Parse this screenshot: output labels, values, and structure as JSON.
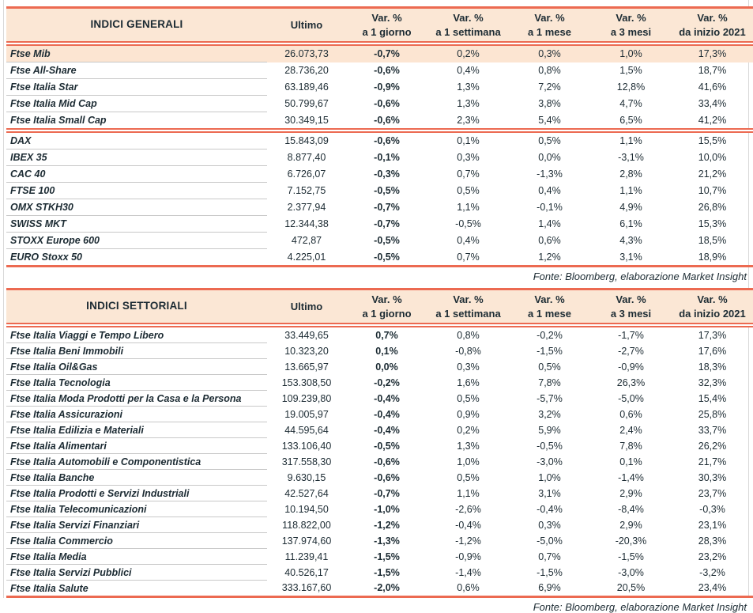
{
  "colors": {
    "accent_border": "#ec6a51",
    "header_bg": "#fbe7d5",
    "highlight_row_bg": "#fce5d2",
    "row_separator": "#c8c8c8",
    "text": "#1c2b33",
    "page_edge": "#d8d8d8"
  },
  "tables": [
    {
      "title": "INDICI GENERALI",
      "ultimo_label": "Ultimo",
      "columns": [
        {
          "top": "Var. %",
          "bottom": "a 1 giorno"
        },
        {
          "top": "Var. %",
          "bottom": "a 1 settimana"
        },
        {
          "top": "Var. %",
          "bottom": "a 1 mese"
        },
        {
          "top": "Var. %",
          "bottom": "a 3 mesi"
        },
        {
          "top": "Var. %",
          "bottom": "da inizio 2021"
        }
      ],
      "rows": [
        {
          "name": "Ftse Mib",
          "ultimo": "26.073,73",
          "vars": [
            "-0,7%",
            "0,2%",
            "0,3%",
            "1,0%",
            "17,3%"
          ],
          "highlight": true
        },
        {
          "name": "Ftse All-Share",
          "ultimo": "28.736,20",
          "vars": [
            "-0,6%",
            "0,4%",
            "0,8%",
            "1,5%",
            "18,7%"
          ]
        },
        {
          "name": "Ftse Italia Star",
          "ultimo": "63.189,46",
          "vars": [
            "-0,9%",
            "1,3%",
            "7,2%",
            "12,8%",
            "41,6%"
          ]
        },
        {
          "name": "Ftse Italia Mid Cap",
          "ultimo": "50.799,67",
          "vars": [
            "-0,6%",
            "1,3%",
            "3,8%",
            "4,7%",
            "33,4%"
          ]
        },
        {
          "name": "Ftse Italia Small Cap",
          "ultimo": "30.349,15",
          "vars": [
            "-0,6%",
            "2,3%",
            "5,4%",
            "6,5%",
            "41,2%"
          ],
          "divider_after": true
        },
        {
          "name": "DAX",
          "ultimo": "15.843,09",
          "vars": [
            "-0,6%",
            "0,1%",
            "0,5%",
            "1,1%",
            "15,5%"
          ]
        },
        {
          "name": "IBEX 35",
          "ultimo": "8.877,40",
          "vars": [
            "-0,1%",
            "0,3%",
            "0,0%",
            "-3,1%",
            "10,0%"
          ]
        },
        {
          "name": "CAC 40",
          "ultimo": "6.726,07",
          "vars": [
            "-0,3%",
            "0,7%",
            "-1,3%",
            "2,8%",
            "21,2%"
          ]
        },
        {
          "name": "FTSE 100",
          "ultimo": "7.152,75",
          "vars": [
            "-0,5%",
            "0,5%",
            "0,4%",
            "1,1%",
            "10,7%"
          ]
        },
        {
          "name": "OMX STKH30",
          "ultimo": "2.377,94",
          "vars": [
            "-0,7%",
            "1,1%",
            "-0,1%",
            "4,9%",
            "26,8%"
          ]
        },
        {
          "name": "SWISS MKT",
          "ultimo": "12.344,38",
          "vars": [
            "-0,7%",
            "-0,5%",
            "1,4%",
            "6,1%",
            "15,3%"
          ]
        },
        {
          "name": "STOXX Europe 600",
          "ultimo": "472,87",
          "vars": [
            "-0,5%",
            "0,4%",
            "0,6%",
            "4,3%",
            "18,5%"
          ]
        },
        {
          "name": "EURO Stoxx 50",
          "ultimo": "4.225,01",
          "vars": [
            "-0,5%",
            "0,7%",
            "1,2%",
            "3,1%",
            "18,9%"
          ]
        }
      ],
      "source": "Fonte: Bloomberg, elaborazione Market Insight"
    },
    {
      "title": "INDICI SETTORIALI",
      "ultimo_label": "Ultimo",
      "columns": [
        {
          "top": "Var. %",
          "bottom": "a 1 giorno"
        },
        {
          "top": "Var. %",
          "bottom": "a 1 settimana"
        },
        {
          "top": "Var. %",
          "bottom": "a 1 mese"
        },
        {
          "top": "Var. %",
          "bottom": "a 3 mesi"
        },
        {
          "top": "Var. %",
          "bottom": "da inizio 2021"
        }
      ],
      "rows": [
        {
          "name": "Ftse Italia Viaggi e Tempo Libero",
          "ultimo": "33.449,65",
          "vars": [
            "0,7%",
            "0,8%",
            "-0,2%",
            "-1,7%",
            "17,3%"
          ]
        },
        {
          "name": "Ftse Italia Beni Immobili",
          "ultimo": "10.323,20",
          "vars": [
            "0,1%",
            "-0,8%",
            "-1,5%",
            "-2,7%",
            "17,6%"
          ]
        },
        {
          "name": "Ftse Italia Oil&Gas",
          "ultimo": "13.665,97",
          "vars": [
            "0,0%",
            "0,3%",
            "0,5%",
            "-0,9%",
            "18,3%"
          ]
        },
        {
          "name": "Ftse Italia Tecnologia",
          "ultimo": "153.308,50",
          "vars": [
            "-0,2%",
            "1,6%",
            "7,8%",
            "26,3%",
            "32,3%"
          ]
        },
        {
          "name": "Ftse Italia Moda Prodotti per la Casa e la Persona",
          "ultimo": "109.239,80",
          "vars": [
            "-0,4%",
            "0,5%",
            "-5,7%",
            "-5,0%",
            "15,4%"
          ]
        },
        {
          "name": "Ftse Italia Assicurazioni",
          "ultimo": "19.005,97",
          "vars": [
            "-0,4%",
            "0,9%",
            "3,2%",
            "0,6%",
            "25,8%"
          ]
        },
        {
          "name": "Ftse Italia Edilizia e Materiali",
          "ultimo": "44.595,64",
          "vars": [
            "-0,4%",
            "0,2%",
            "5,9%",
            "2,4%",
            "33,7%"
          ]
        },
        {
          "name": "Ftse Italia Alimentari",
          "ultimo": "133.106,40",
          "vars": [
            "-0,5%",
            "1,3%",
            "-0,5%",
            "7,8%",
            "26,2%"
          ]
        },
        {
          "name": "Ftse Italia Automobili e Componentistica",
          "ultimo": "317.558,30",
          "vars": [
            "-0,6%",
            "1,0%",
            "-3,0%",
            "0,1%",
            "21,7%"
          ]
        },
        {
          "name": "Ftse Italia Banche",
          "ultimo": "9.630,15",
          "vars": [
            "-0,6%",
            "0,5%",
            "1,0%",
            "-1,4%",
            "30,3%"
          ]
        },
        {
          "name": "Ftse Italia Prodotti e Servizi Industriali",
          "ultimo": "42.527,64",
          "vars": [
            "-0,7%",
            "1,1%",
            "3,1%",
            "2,9%",
            "23,7%"
          ]
        },
        {
          "name": "Ftse Italia Telecomunicazioni",
          "ultimo": "10.194,50",
          "vars": [
            "-1,0%",
            "-2,6%",
            "-0,4%",
            "-8,4%",
            "-0,3%"
          ]
        },
        {
          "name": "Ftse Italia Servizi Finanziari",
          "ultimo": "118.822,00",
          "vars": [
            "-1,2%",
            "-0,4%",
            "0,3%",
            "2,9%",
            "23,1%"
          ]
        },
        {
          "name": "Ftse Italia Commercio",
          "ultimo": "137.974,60",
          "vars": [
            "-1,3%",
            "-1,2%",
            "-5,0%",
            "-20,3%",
            "28,3%"
          ]
        },
        {
          "name": "Ftse Italia Media",
          "ultimo": "11.239,41",
          "vars": [
            "-1,5%",
            "-0,9%",
            "0,7%",
            "-1,5%",
            "23,2%"
          ]
        },
        {
          "name": "Ftse Italia Servizi Pubblici",
          "ultimo": "40.526,17",
          "vars": [
            "-1,5%",
            "-1,4%",
            "-1,5%",
            "-3,0%",
            "-3,2%"
          ]
        },
        {
          "name": "Ftse Italia Salute",
          "ultimo": "333.167,60",
          "vars": [
            "-2,0%",
            "0,6%",
            "6,9%",
            "20,5%",
            "23,4%"
          ]
        }
      ],
      "source": "Fonte: Bloomberg, elaborazione Market Insight"
    }
  ]
}
